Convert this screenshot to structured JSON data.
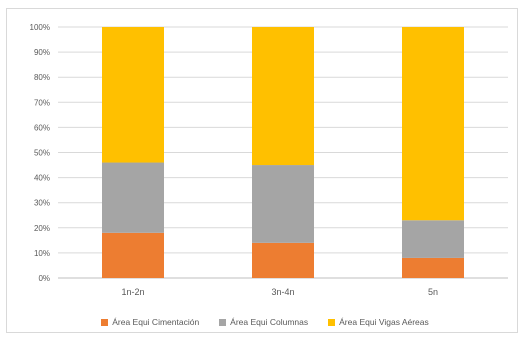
{
  "chart_data": {
    "type": "bar",
    "stacked": "percent",
    "categories": [
      "1n-2n",
      "3n-4n",
      "5n"
    ],
    "series": [
      {
        "name": "Área Equi Cimentación",
        "color": "#ED7D31",
        "values": [
          18,
          14,
          8
        ]
      },
      {
        "name": "Área Equi Columnas",
        "color": "#A5A5A5",
        "values": [
          28,
          31,
          15
        ]
      },
      {
        "name": "Área Equi Vigas Aéreas",
        "color": "#FFC000",
        "values": [
          54,
          55,
          77
        ]
      }
    ],
    "y_ticks": [
      "0%",
      "10%",
      "20%",
      "30%",
      "40%",
      "50%",
      "60%",
      "70%",
      "80%",
      "90%",
      "100%"
    ],
    "ylim": [
      0,
      100
    ],
    "grid": true,
    "legend_position": "bottom",
    "title": "",
    "xlabel": "",
    "ylabel": ""
  }
}
